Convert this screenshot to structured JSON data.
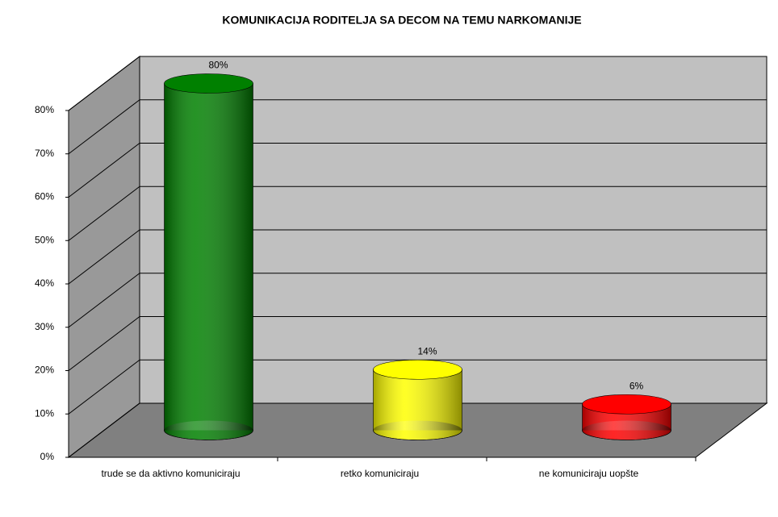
{
  "chart_data": {
    "type": "cylinder-bar",
    "title": "KOMUNIKACIJA RODITELJA SA DECOM NA TEMU NARKOMANIJE",
    "categories": [
      "trude se da aktivno komuniciraju",
      "retko komuniciraju",
      "ne komuniciraju  uopšte"
    ],
    "values": [
      80,
      14,
      6
    ],
    "value_labels": [
      "80%",
      "14%",
      "6%"
    ],
    "colors": [
      "#008000",
      "#ffff00",
      "#ff0000"
    ],
    "ylim": [
      0,
      80
    ],
    "yticks": [
      {
        "value": 0,
        "label": "0%"
      },
      {
        "value": 10,
        "label": "10%"
      },
      {
        "value": 20,
        "label": "20%"
      },
      {
        "value": 30,
        "label": "30%"
      },
      {
        "value": 40,
        "label": "40%"
      },
      {
        "value": 50,
        "label": "50%"
      },
      {
        "value": 60,
        "label": "60%"
      },
      {
        "value": 70,
        "label": "70%"
      },
      {
        "value": 80,
        "label": "80%"
      }
    ],
    "grid": true
  }
}
